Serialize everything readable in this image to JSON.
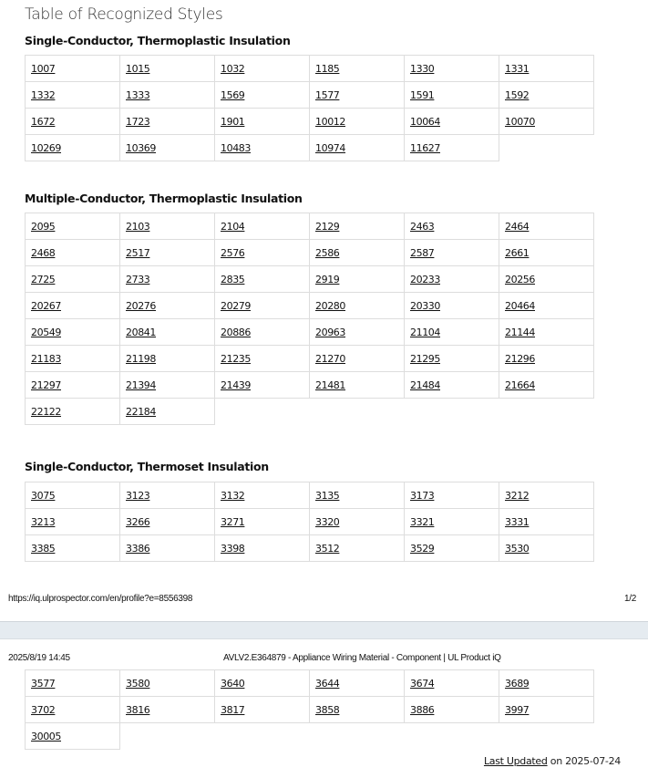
{
  "title": "Table of Recognized Styles",
  "sections": [
    {
      "heading": "Single-Conductor, Thermoplastic Insulation",
      "rows": [
        [
          "1007",
          "1015",
          "1032",
          "1185",
          "1330",
          "1331"
        ],
        [
          "1332",
          "1333",
          "1569",
          "1577",
          "1591",
          "1592"
        ],
        [
          "1672",
          "1723",
          "1901",
          "10012",
          "10064",
          "10070"
        ],
        [
          "10269",
          "10369",
          "10483",
          "10974",
          "11627"
        ]
      ]
    },
    {
      "heading": "Multiple-Conductor, Thermoplastic Insulation",
      "rows": [
        [
          "2095",
          "2103",
          "2104",
          "2129",
          "2463",
          "2464"
        ],
        [
          "2468",
          "2517",
          "2576",
          "2586",
          "2587",
          "2661"
        ],
        [
          "2725",
          "2733",
          "2835",
          "2919",
          "20233",
          "20256"
        ],
        [
          "20267",
          "20276",
          "20279",
          "20280",
          "20330",
          "20464"
        ],
        [
          "20549",
          "20841",
          "20886",
          "20963",
          "21104",
          "21144"
        ],
        [
          "21183",
          "21198",
          "21235",
          "21270",
          "21295",
          "21296"
        ],
        [
          "21297",
          "21394",
          "21439",
          "21481",
          "21484",
          "21664"
        ],
        [
          "22122",
          "22184"
        ]
      ]
    },
    {
      "heading": "Single-Conductor, Thermoset Insulation",
      "rows": [
        [
          "3075",
          "3123",
          "3132",
          "3135",
          "3173",
          "3212"
        ],
        [
          "3213",
          "3266",
          "3271",
          "3320",
          "3321",
          "3331"
        ],
        [
          "3385",
          "3386",
          "3398",
          "3512",
          "3529",
          "3530"
        ]
      ]
    },
    {
      "heading": "",
      "rows": [
        [
          "3577",
          "3580",
          "3640",
          "3644",
          "3674",
          "3689"
        ],
        [
          "3702",
          "3816",
          "3817",
          "3858",
          "3886",
          "3997"
        ],
        [
          "30005"
        ]
      ]
    }
  ],
  "page1_footer": {
    "url": "https://iq.ulprospector.com/en/profile?e=8556398",
    "page": "1/2"
  },
  "page2_header": {
    "datetime": "2025/8/19 14:45",
    "doc_title": "AVLV2.E364879 - Appliance Wiring Material - Component | UL Product iQ"
  },
  "last_updated": {
    "link": "Last Updated",
    "text": " on 2025-07-24"
  }
}
